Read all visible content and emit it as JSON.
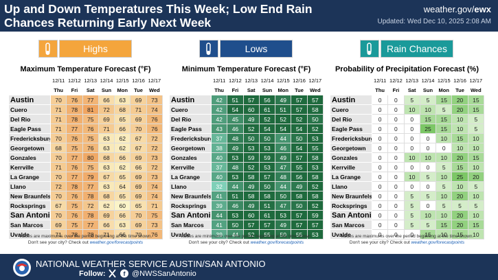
{
  "header": {
    "title": [
      "Up and Down Temperatures This Week; Low End Rain",
      "Chances Returning Early Next Week"
    ],
    "site": "weather.gov/",
    "site_bold": "ewx",
    "updated": "Updated: Wed Dec 10, 2025 2:08 AM"
  },
  "dates": [
    "12/11",
    "12/12",
    "12/13",
    "12/14",
    "12/15",
    "12/16",
    "12/17"
  ],
  "days": [
    "Thu",
    "Fri",
    "Sat",
    "Sun",
    "Mon",
    "Tue",
    "Wed"
  ],
  "cities": [
    "Austin",
    "Cuero",
    "Del Rio",
    "Eagle Pass",
    "Fredericksburg",
    "Georgetown",
    "Gonzales",
    "Kerrville",
    "La Grange",
    "Llano",
    "New Braunfels",
    "Rocksprings",
    "San Antonio",
    "San Marcos",
    "Uvalde"
  ],
  "panels": [
    {
      "button": "Highs",
      "heading": "Maximum Temperature Forecast (°F)",
      "note": "Values are maximums over the period beginning at the time shown.",
      "values": [
        [
          70,
          76,
          77,
          66,
          63,
          69,
          73
        ],
        [
          71,
          78,
          81,
          72,
          68,
          71,
          74
        ],
        [
          71,
          78,
          75,
          69,
          65,
          69,
          76
        ],
        [
          71,
          77,
          76,
          71,
          66,
          70,
          76
        ],
        [
          70,
          76,
          75,
          63,
          62,
          67,
          72
        ],
        [
          68,
          75,
          76,
          63,
          62,
          67,
          72
        ],
        [
          70,
          77,
          80,
          68,
          66,
          69,
          73
        ],
        [
          71,
          76,
          75,
          63,
          62,
          66,
          72
        ],
        [
          70,
          77,
          79,
          67,
          65,
          69,
          73
        ],
        [
          72,
          78,
          77,
          63,
          64,
          69,
          74
        ],
        [
          70,
          76,
          78,
          68,
          65,
          69,
          74
        ],
        [
          67,
          75,
          72,
          62,
          60,
          65,
          71
        ],
        [
          70,
          76,
          78,
          69,
          66,
          70,
          75
        ],
        [
          69,
          75,
          77,
          66,
          63,
          69,
          73
        ],
        [
          71,
          78,
          78,
          71,
          66,
          70,
          76
        ]
      ]
    },
    {
      "button": "Lows",
      "heading": "Minimum Temperature Forecast (°F)",
      "note": "Values are minimums over the period beginning at the time shown.",
      "values": [
        [
          42,
          51,
          57,
          56,
          49,
          57,
          57
        ],
        [
          42,
          54,
          60,
          61,
          51,
          57,
          58
        ],
        [
          42,
          45,
          49,
          52,
          52,
          52,
          50
        ],
        [
          43,
          46,
          52,
          54,
          54,
          54,
          52
        ],
        [
          37,
          48,
          50,
          50,
          44,
          50,
          53
        ],
        [
          38,
          49,
          53,
          53,
          46,
          54,
          55
        ],
        [
          40,
          53,
          59,
          59,
          49,
          57,
          58
        ],
        [
          37,
          48,
          52,
          53,
          47,
          55,
          53
        ],
        [
          40,
          53,
          58,
          57,
          48,
          56,
          58
        ],
        [
          32,
          44,
          49,
          50,
          44,
          49,
          52
        ],
        [
          41,
          51,
          58,
          58,
          50,
          58,
          58
        ],
        [
          39,
          46,
          49,
          51,
          47,
          50,
          52
        ],
        [
          44,
          53,
          60,
          61,
          53,
          57,
          59
        ],
        [
          41,
          50,
          57,
          57,
          49,
          57,
          57
        ],
        [
          39,
          44,
          52,
          55,
          50,
          55,
          53
        ]
      ]
    },
    {
      "button": "Rain Chances",
      "heading": "Probability of Precipitation Forecast (%)",
      "note": "Values are maximums over the period beginning at the time shown.",
      "values": [
        [
          0,
          0,
          5,
          5,
          15,
          20,
          15
        ],
        [
          0,
          0,
          10,
          10,
          5,
          20,
          15
        ],
        [
          0,
          0,
          0,
          15,
          15,
          10,
          5
        ],
        [
          0,
          0,
          0,
          25,
          15,
          10,
          5
        ],
        [
          0,
          0,
          0,
          0,
          10,
          15,
          10
        ],
        [
          0,
          0,
          0,
          0,
          0,
          10,
          10
        ],
        [
          0,
          0,
          10,
          10,
          10,
          20,
          15
        ],
        [
          0,
          0,
          0,
          0,
          5,
          15,
          10
        ],
        [
          0,
          0,
          10,
          5,
          10,
          25,
          20
        ],
        [
          0,
          0,
          0,
          0,
          5,
          10,
          5
        ],
        [
          0,
          0,
          5,
          5,
          10,
          20,
          10
        ],
        [
          0,
          0,
          5,
          0,
          5,
          5,
          5
        ],
        [
          0,
          0,
          5,
          10,
          10,
          20,
          10
        ],
        [
          0,
          0,
          5,
          5,
          15,
          20,
          15
        ],
        [
          0,
          0,
          0,
          15,
          10,
          15,
          10
        ]
      ]
    }
  ],
  "footnote": [
    "Don't see your city? Check out",
    "weather.gov/forecastpoints"
  ],
  "footer": {
    "org": "NATIONAL WEATHER SERVICE AUSTIN/SAN ANTONIO",
    "follow": "Follow:",
    "handle": "@NWSSanAntonio"
  }
}
